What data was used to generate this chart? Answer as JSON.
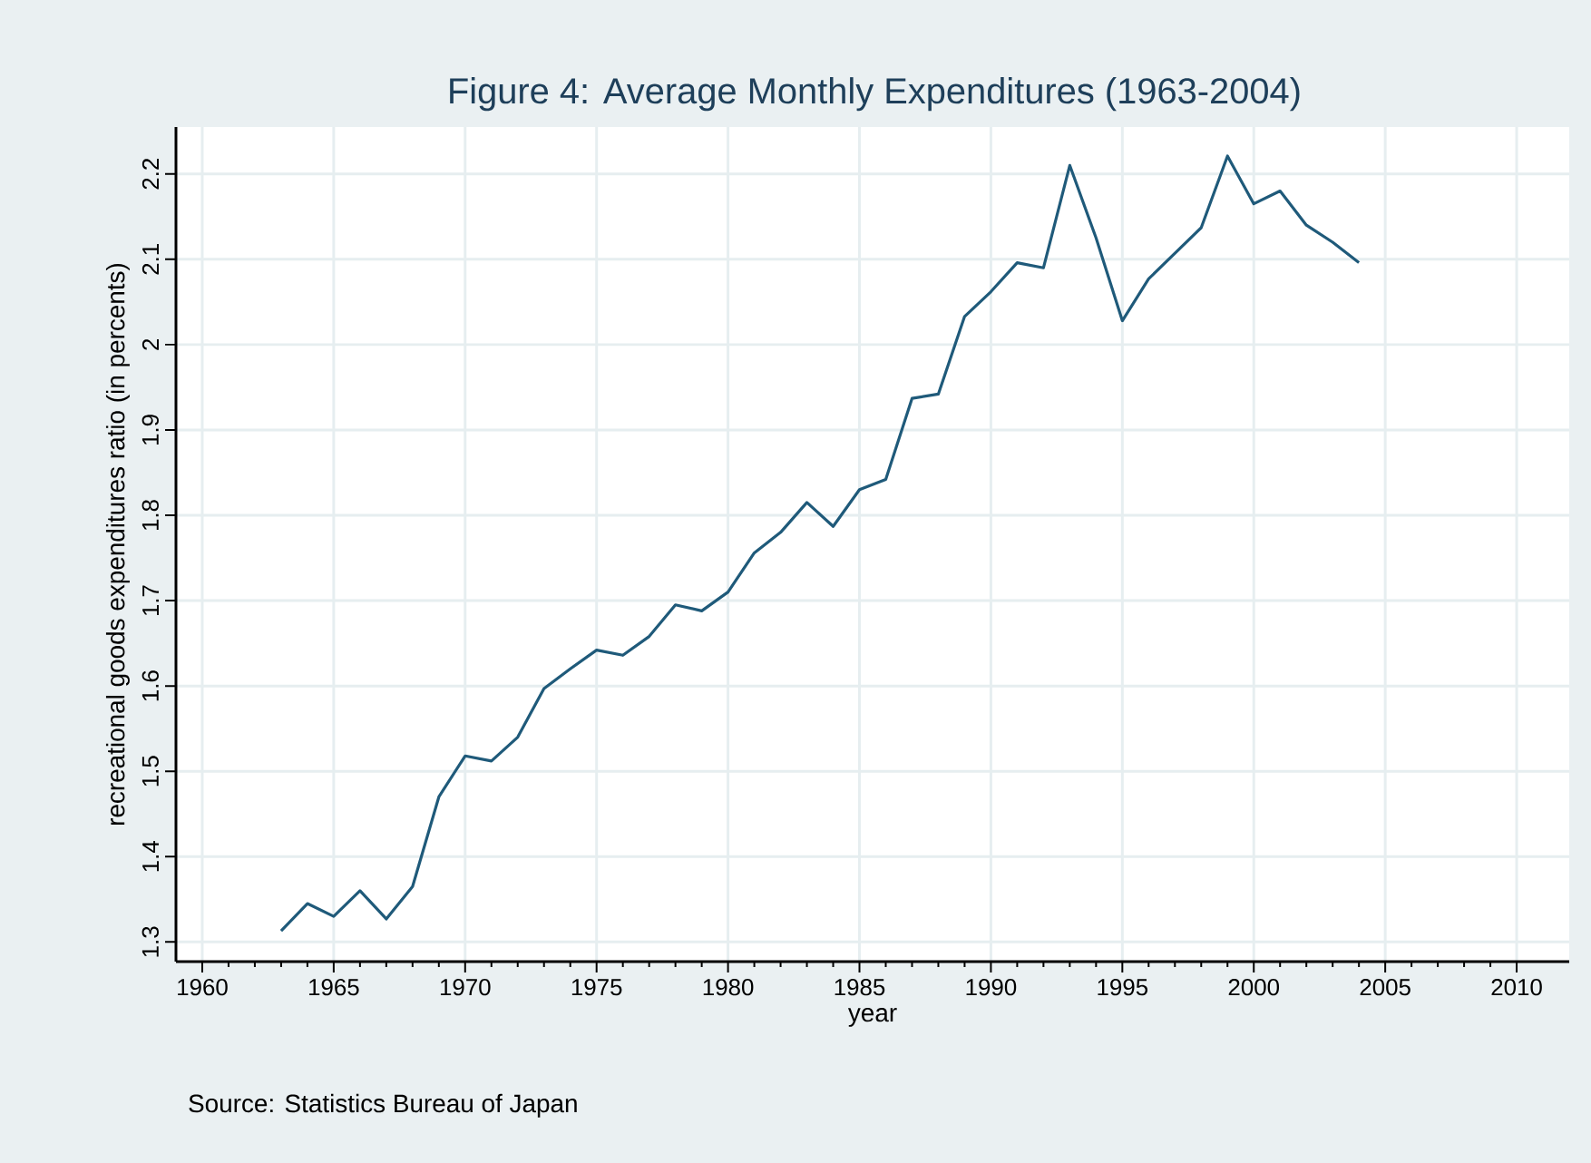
{
  "chart_data": {
    "type": "line",
    "title": "Figure 4: Average Monthly Expenditures (1963-2004)",
    "xlabel": "year",
    "ylabel": "recreational goods expenditures ratio (in percents)",
    "annotations": [
      "Source: Statistics Bureau of Japan"
    ],
    "x": [
      1963,
      1964,
      1965,
      1966,
      1967,
      1968,
      1969,
      1970,
      1971,
      1972,
      1973,
      1974,
      1975,
      1976,
      1977,
      1978,
      1979,
      1980,
      1981,
      1982,
      1983,
      1984,
      1985,
      1986,
      1987,
      1988,
      1989,
      1990,
      1991,
      1992,
      1993,
      1994,
      1995,
      1996,
      1997,
      1998,
      1999,
      2000,
      2001,
      2002,
      2003,
      2004
    ],
    "series": [
      {
        "color": "#1f5a7a",
        "values": [
          1.313,
          1.345,
          1.33,
          1.36,
          1.327,
          1.365,
          1.47,
          1.518,
          1.512,
          1.54,
          1.597,
          1.62,
          1.642,
          1.636,
          1.658,
          1.695,
          1.688,
          1.71,
          1.756,
          1.78,
          1.815,
          1.787,
          1.83,
          1.842,
          1.937,
          1.942,
          2.033,
          2.062,
          2.096,
          2.09,
          2.21,
          2.125,
          2.028,
          2.077,
          2.107,
          2.137,
          2.221,
          2.165,
          2.18,
          2.14,
          2.12,
          2.096
        ]
      }
    ],
    "xlim": [
      1959,
      2012
    ],
    "ylim": [
      1.277,
      2.255
    ],
    "xticks": [
      1960,
      1965,
      1970,
      1975,
      1980,
      1985,
      1990,
      1995,
      2000,
      2005,
      2010
    ],
    "yticks": [
      1.3,
      1.4,
      1.5,
      1.6,
      1.7,
      1.8,
      1.9,
      2,
      2.1,
      2.2
    ],
    "grid": true,
    "marker": "none",
    "line_style": "solid"
  }
}
